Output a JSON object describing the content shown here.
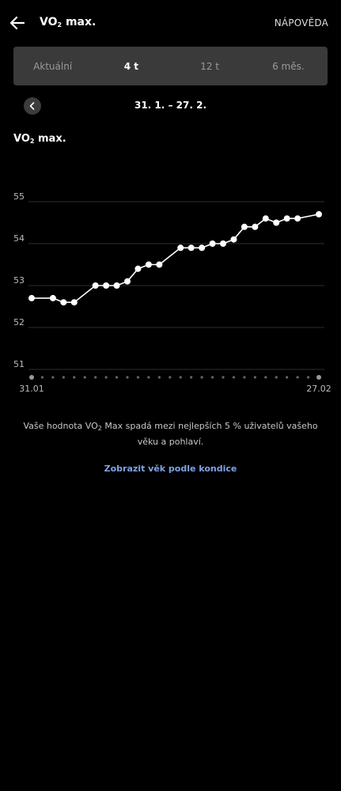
{
  "header": {
    "title_main": "VO",
    "title_sub": "2",
    "title_rest": " max.",
    "help_label": "NÁPOVĚDA"
  },
  "tabs": [
    {
      "label": "Aktuální",
      "active": false
    },
    {
      "label": "4 t",
      "active": true
    },
    {
      "label": "12 t",
      "active": false
    },
    {
      "label": "6 měs.",
      "active": false
    }
  ],
  "date_range": "31. 1. – 27. 2.",
  "section": {
    "title_main": "VO",
    "title_sub": "2",
    "title_rest": " max."
  },
  "chart_data": {
    "type": "line",
    "ylim": [
      51,
      55
    ],
    "y_ticks": [
      "51",
      "52",
      "53",
      "54",
      "55"
    ],
    "x_start_label": "31.01",
    "x_end_label": "27.02",
    "days": 28,
    "points": [
      {
        "day": 0,
        "y": 52.7
      },
      {
        "day": 2,
        "y": 52.7
      },
      {
        "day": 3,
        "y": 52.6
      },
      {
        "day": 4,
        "y": 52.6
      },
      {
        "day": 6,
        "y": 53.0
      },
      {
        "day": 7,
        "y": 53.0
      },
      {
        "day": 8,
        "y": 53.0
      },
      {
        "day": 9,
        "y": 53.1
      },
      {
        "day": 10,
        "y": 53.4
      },
      {
        "day": 11,
        "y": 53.5
      },
      {
        "day": 12,
        "y": 53.5
      },
      {
        "day": 14,
        "y": 53.9
      },
      {
        "day": 15,
        "y": 53.9
      },
      {
        "day": 16,
        "y": 53.9
      },
      {
        "day": 17,
        "y": 54.0
      },
      {
        "day": 18,
        "y": 54.0
      },
      {
        "day": 19,
        "y": 54.1
      },
      {
        "day": 20,
        "y": 54.4
      },
      {
        "day": 21,
        "y": 54.4
      },
      {
        "day": 22,
        "y": 54.6
      },
      {
        "day": 23,
        "y": 54.5
      },
      {
        "day": 24,
        "y": 54.6
      },
      {
        "day": 25,
        "y": 54.6
      },
      {
        "day": 27,
        "y": 54.7
      }
    ],
    "colors": {
      "line": "#ffffff",
      "grid": "#2e2e2e",
      "tick": "#bbbbbb",
      "dot": "#666666"
    }
  },
  "description": {
    "before": "Vaše hodnota VO",
    "sub": "2",
    "after": " Max spadá mezi nejlepších 5 % uživatelů vašeho věku a pohlaví."
  },
  "link_label": "Zobrazit věk podle kondice"
}
